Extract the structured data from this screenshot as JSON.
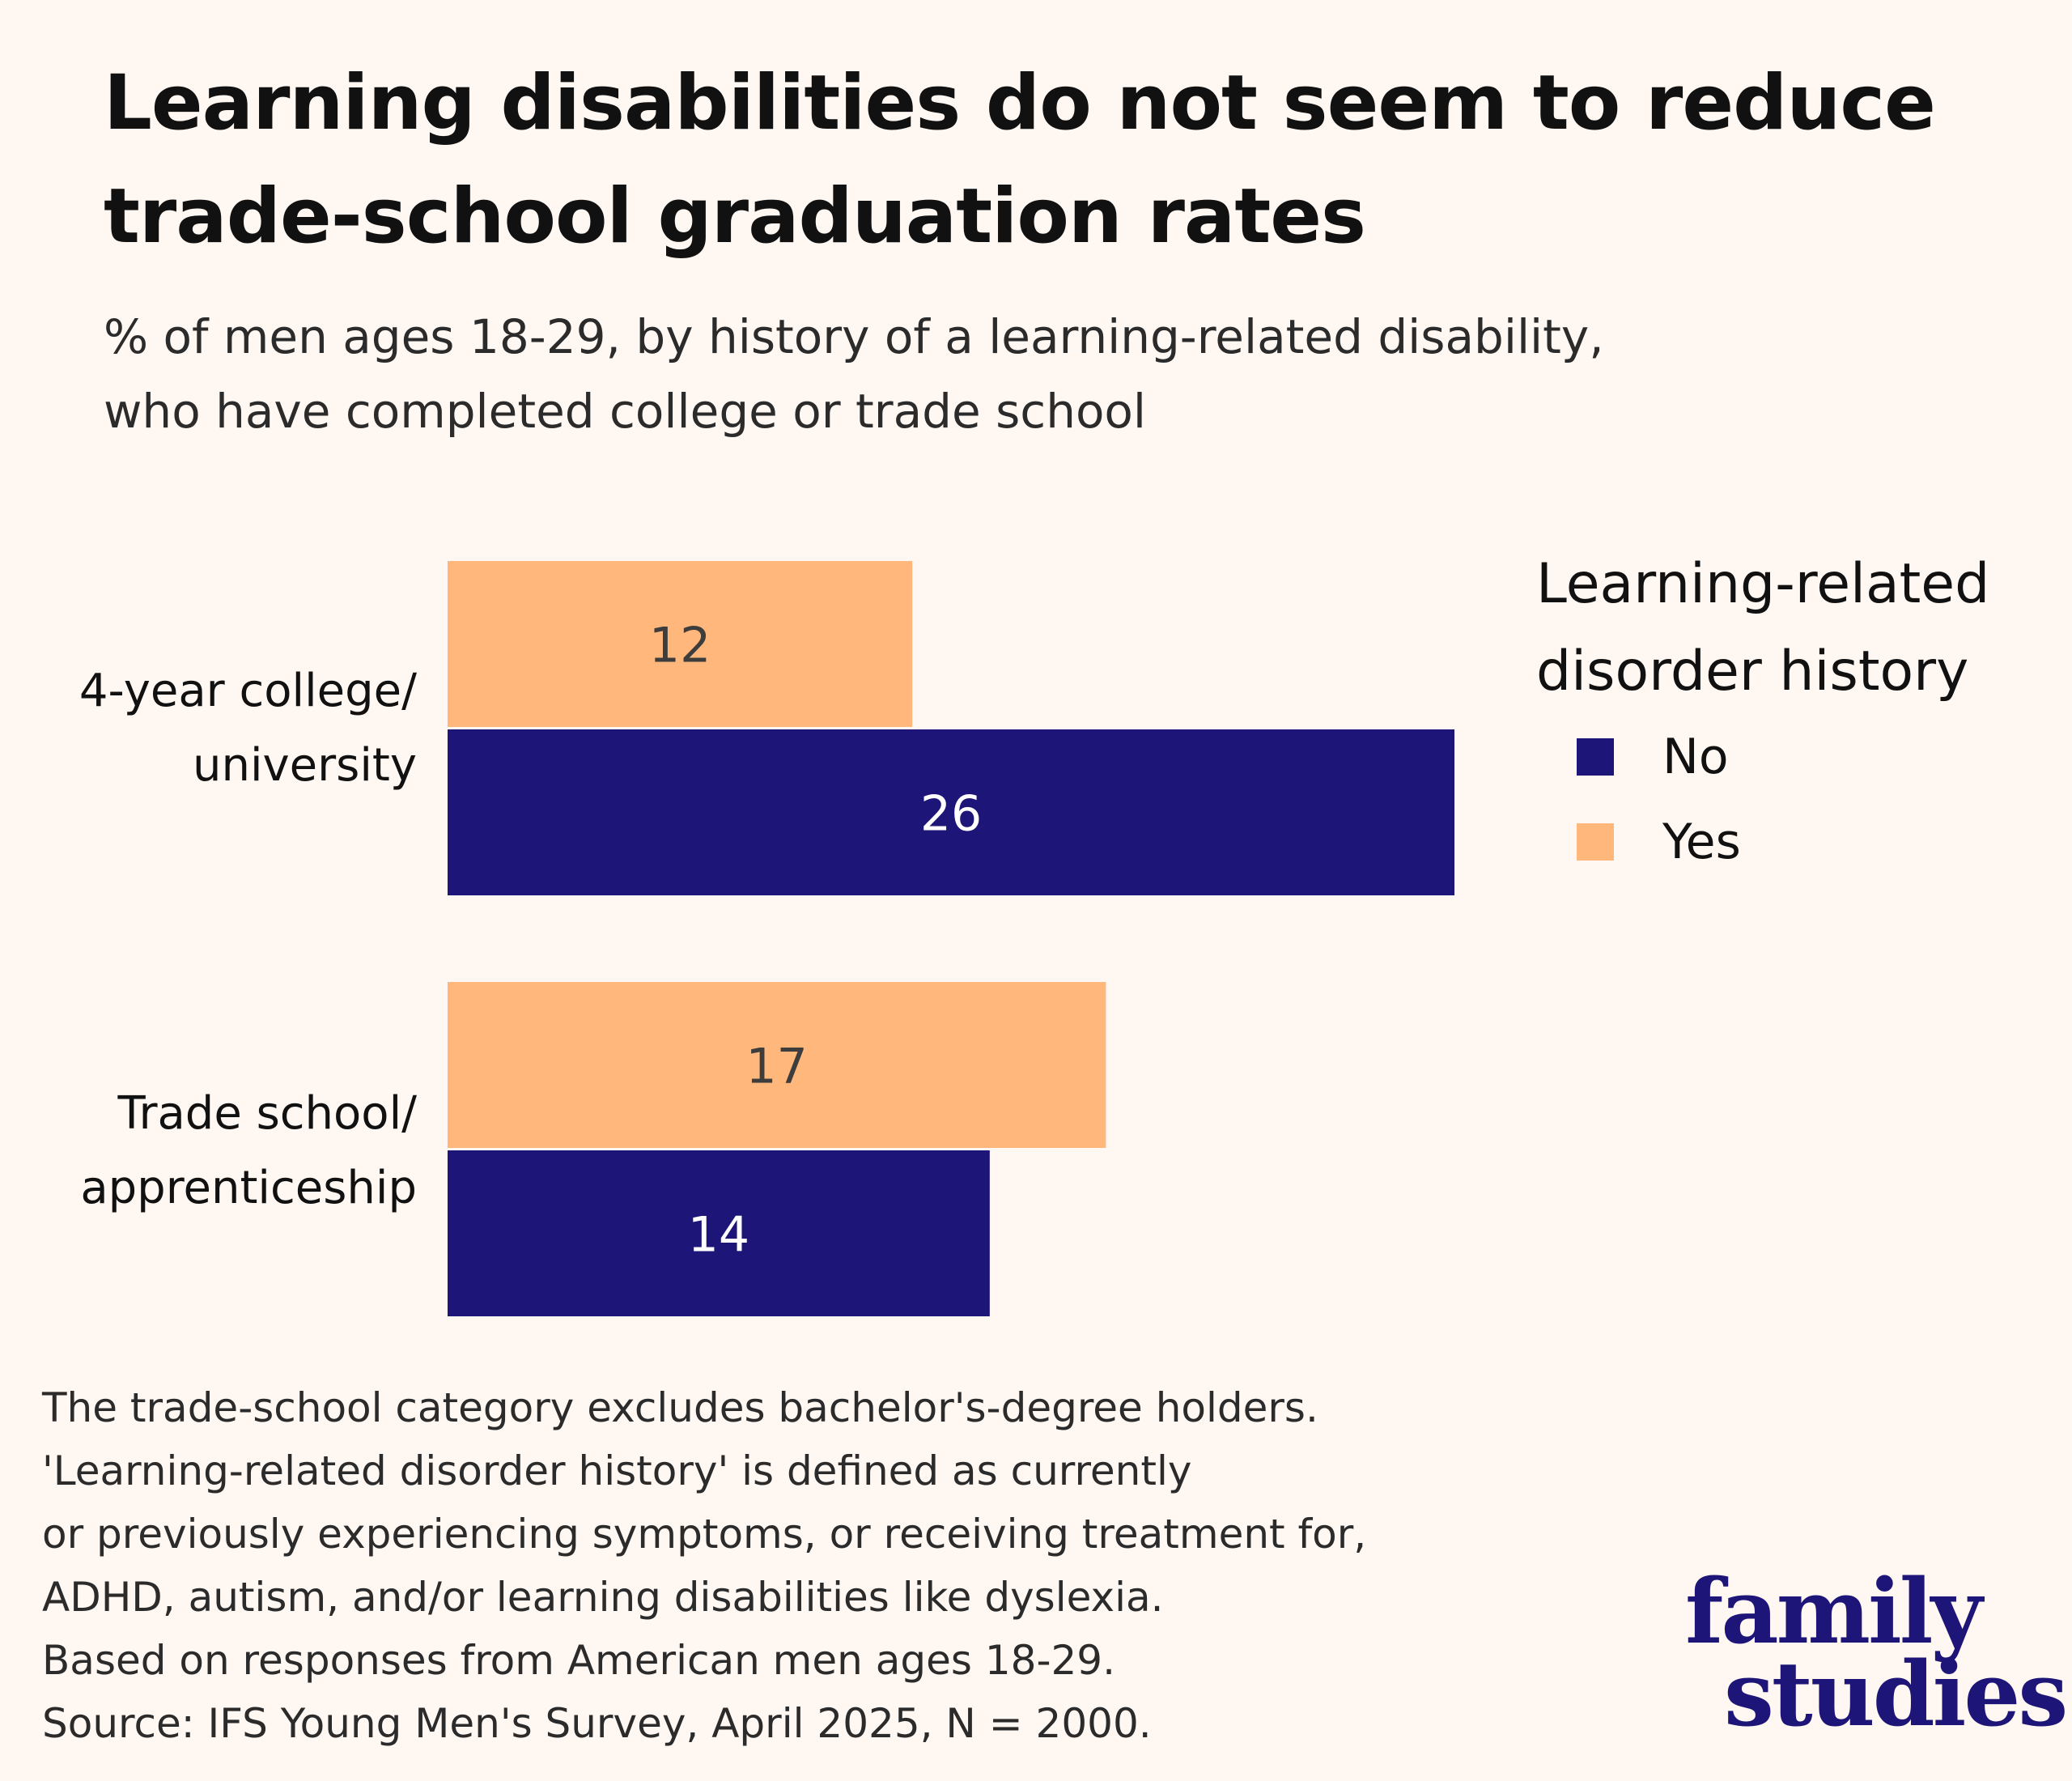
{
  "header": {
    "title_lines": [
      "Learning disabilities do not seem to reduce",
      "trade-school graduation rates"
    ],
    "subtitle_lines": [
      "% of men ages 18-29, by history of a learning-related disability,",
      "who have completed college or trade school"
    ]
  },
  "colors": {
    "background": "#fff7f2",
    "no": "#1d1577",
    "yes": "#ffb77c",
    "label_on_yes": "#3d3d3d",
    "label_on_no": "#ffffff"
  },
  "chart_data": {
    "type": "bar",
    "orientation": "horizontal",
    "title": "Learning disabilities do not seem to reduce trade-school graduation rates",
    "subtitle": "% of men ages 18-29, by history of a learning-related disability, who have completed college or trade school",
    "categories": [
      [
        "4-year college/",
        "university"
      ],
      [
        "Trade school/",
        "apprenticeship"
      ]
    ],
    "series": [
      {
        "name": "Yes",
        "values": [
          12,
          17
        ]
      },
      {
        "name": "No",
        "values": [
          26,
          14
        ]
      }
    ],
    "xlabel": "",
    "ylabel": "",
    "xlim": [
      0,
      26
    ],
    "grid": false,
    "data_labels": true,
    "legend": {
      "title_lines": [
        "Learning-related",
        "disorder history"
      ],
      "entries": [
        "No",
        "Yes"
      ],
      "placement": "right"
    }
  },
  "notes": [
    "The trade-school category excludes bachelor's-degree holders.",
    "'Learning-related disorder history' is defined as currently",
    "or previously experiencing symptoms, or receiving treatment for,",
    "ADHD, autism, and/or learning disabilities like dyslexia.",
    "Based on responses from American men ages 18-29.",
    "Source: IFS Young Men's Survey, April 2025, N = 2000."
  ],
  "logo": {
    "line1": "family",
    "line2": "studies"
  }
}
